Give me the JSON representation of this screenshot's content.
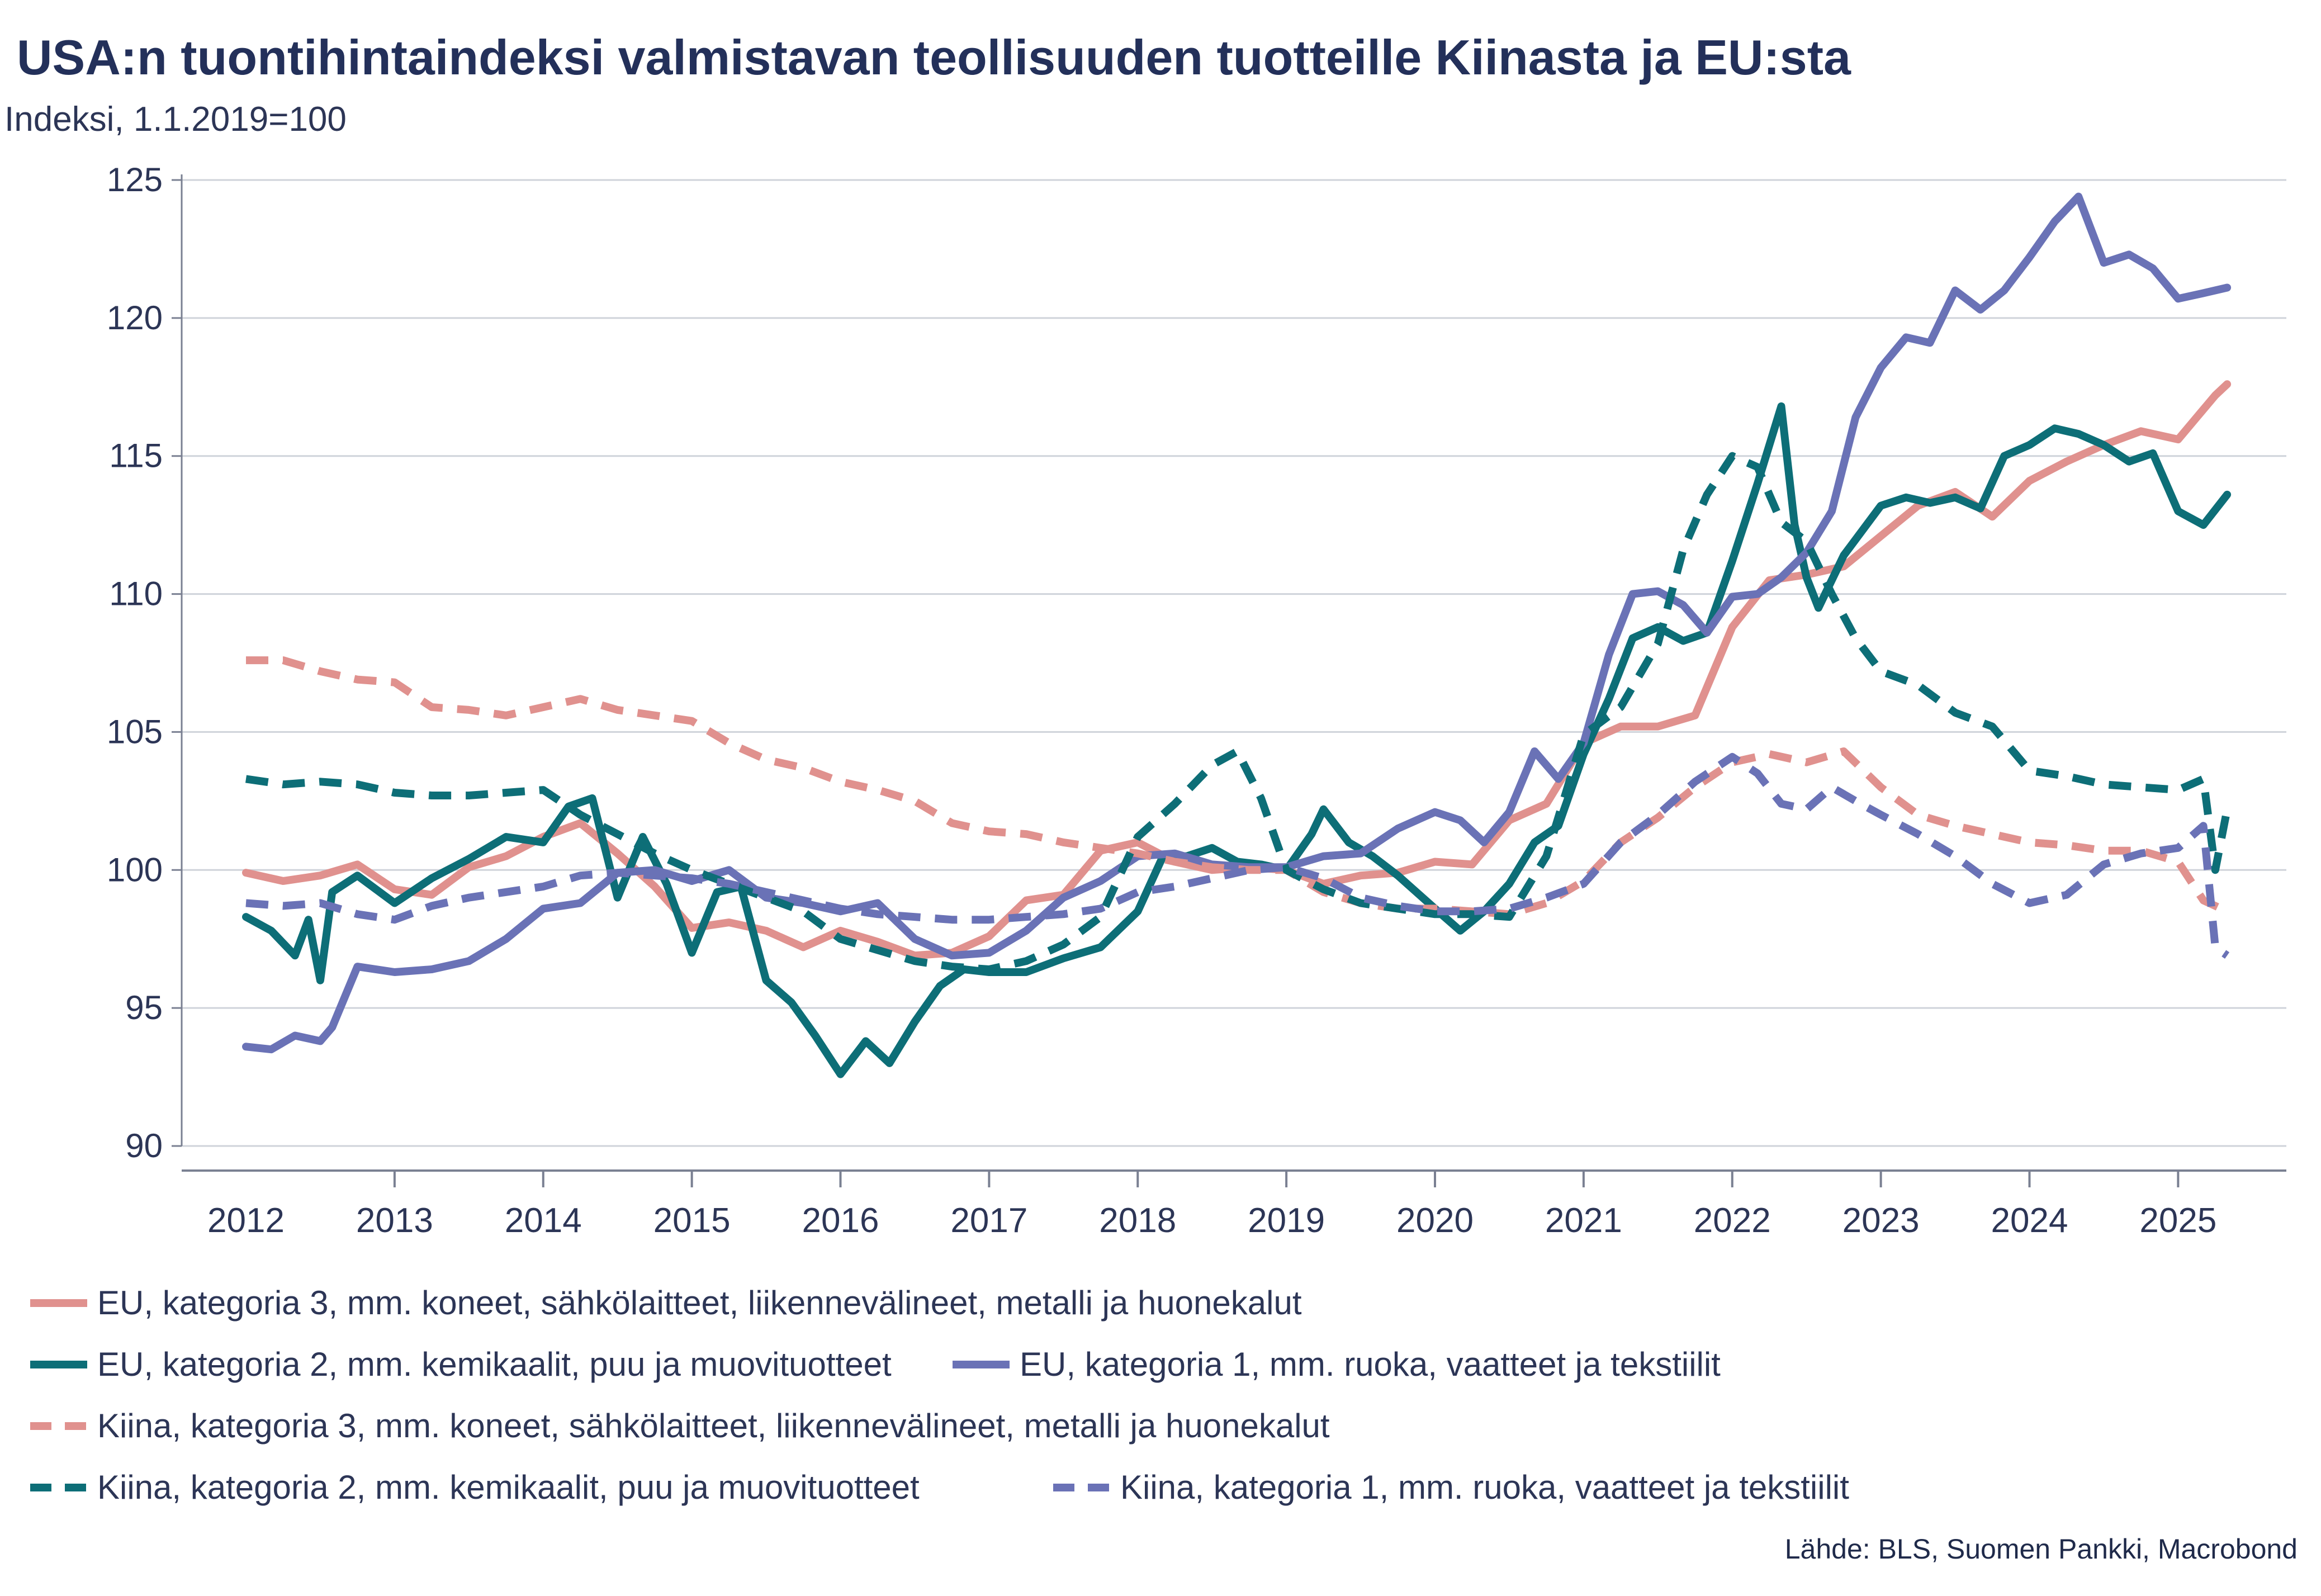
{
  "chart_data": {
    "type": "line",
    "title": "USA:n tuontihintaindeksi valmistavan teollisuuden tuotteille Kiinasta ja EU:sta",
    "ylabel": "Indeksi, 1.1.2019=100",
    "xlabel": "",
    "ylim": [
      90,
      125
    ],
    "yticks": [
      90,
      95,
      100,
      105,
      110,
      115,
      120,
      125
    ],
    "xlim": [
      2012.0,
      2025.3333
    ],
    "xticks": [
      "2012",
      "2013",
      "2014",
      "2015",
      "2016",
      "2017",
      "2018",
      "2019",
      "2020",
      "2021",
      "2022",
      "2023",
      "2024",
      "2025"
    ],
    "grid": "horizontal",
    "source": "Lähde: BLS, Suomen Pankki, Macrobond",
    "series": [
      {
        "name": "EU, kategoria 3, mm. koneet, sähkölaitteet, liikennevälineet, metalli ja huonekalut",
        "color": "#e0918e",
        "dash": false,
        "x": [
          2012.0,
          2012.25,
          2012.5,
          2012.75,
          2013.0,
          2013.25,
          2013.5,
          2013.75,
          2014.0,
          2014.25,
          2014.5,
          2014.75,
          2015.0,
          2015.25,
          2015.5,
          2015.75,
          2016.0,
          2016.25,
          2016.5,
          2016.75,
          2017.0,
          2017.25,
          2017.5,
          2017.75,
          2018.0,
          2018.25,
          2018.5,
          2018.75,
          2019.0,
          2019.25,
          2019.5,
          2019.75,
          2020.0,
          2020.25,
          2020.5,
          2020.75,
          2021.0,
          2021.25,
          2021.5,
          2021.75,
          2022.0,
          2022.25,
          2022.5,
          2022.75,
          2023.0,
          2023.25,
          2023.5,
          2023.75,
          2024.0,
          2024.25,
          2024.5,
          2024.75,
          2025.0,
          2025.25,
          2025.33
        ],
        "y": [
          99.9,
          99.6,
          99.8,
          100.2,
          99.3,
          99.1,
          100.1,
          100.5,
          101.2,
          101.7,
          100.6,
          99.4,
          97.9,
          98.1,
          97.8,
          97.2,
          97.8,
          97.4,
          96.9,
          97.0,
          97.6,
          98.9,
          99.1,
          100.7,
          101.0,
          100.3,
          100.0,
          100.1,
          100.0,
          99.5,
          99.8,
          99.9,
          100.3,
          100.2,
          101.8,
          102.4,
          104.6,
          105.2,
          105.2,
          105.6,
          108.8,
          110.5,
          110.7,
          111.0,
          112.1,
          113.2,
          113.7,
          112.8,
          114.1,
          114.8,
          115.4,
          115.9,
          115.6,
          117.2,
          117.6
        ]
      },
      {
        "name": "EU, kategoria 2, mm. kemikaalit, puu ja muovituotteet",
        "color": "#0d6e77",
        "dash": false,
        "x": [
          2012.0,
          2012.17,
          2012.33,
          2012.42,
          2012.5,
          2012.58,
          2012.75,
          2013.0,
          2013.25,
          2013.5,
          2013.75,
          2014.0,
          2014.17,
          2014.33,
          2014.5,
          2014.67,
          2014.83,
          2015.0,
          2015.17,
          2015.33,
          2015.5,
          2015.67,
          2015.83,
          2016.0,
          2016.17,
          2016.33,
          2016.5,
          2016.67,
          2016.83,
          2017.0,
          2017.25,
          2017.5,
          2017.75,
          2018.0,
          2018.17,
          2018.33,
          2018.5,
          2018.67,
          2018.83,
          2019.0,
          2019.17,
          2019.25,
          2019.42,
          2019.58,
          2019.75,
          2020.0,
          2020.17,
          2020.33,
          2020.5,
          2020.67,
          2020.83,
          2021.0,
          2021.17,
          2021.33,
          2021.5,
          2021.67,
          2021.83,
          2022.0,
          2022.17,
          2022.33,
          2022.42,
          2022.5,
          2022.58,
          2022.75,
          2023.0,
          2023.17,
          2023.33,
          2023.5,
          2023.67,
          2023.83,
          2024.0,
          2024.17,
          2024.33,
          2024.5,
          2024.67,
          2024.83,
          2025.0,
          2025.17,
          2025.33
        ],
        "y": [
          98.3,
          97.8,
          96.9,
          98.2,
          96.0,
          99.2,
          99.8,
          98.8,
          99.7,
          100.4,
          101.2,
          101.0,
          102.3,
          102.6,
          99.0,
          101.2,
          99.5,
          97.0,
          99.2,
          99.4,
          96.0,
          95.2,
          94.0,
          92.6,
          93.8,
          93.0,
          94.5,
          95.8,
          96.4,
          96.3,
          96.3,
          96.8,
          97.2,
          98.5,
          100.5,
          100.5,
          100.8,
          100.3,
          100.2,
          100.0,
          101.3,
          102.2,
          101.0,
          100.5,
          99.8,
          98.6,
          97.8,
          98.5,
          99.5,
          101.0,
          101.6,
          104.2,
          106.2,
          108.4,
          108.8,
          108.3,
          108.6,
          111.2,
          114.0,
          116.8,
          112.5,
          110.6,
          109.5,
          111.4,
          113.2,
          113.5,
          113.3,
          113.5,
          113.1,
          115.0,
          115.4,
          116.0,
          115.8,
          115.4,
          114.8,
          115.1,
          113.0,
          112.5,
          113.6
        ]
      },
      {
        "name": "EU, kategoria 1, mm. ruoka, vaatteet ja tekstiilit",
        "color": "#6a72b6",
        "dash": false,
        "x": [
          2012.0,
          2012.17,
          2012.33,
          2012.5,
          2012.58,
          2012.75,
          2013.0,
          2013.25,
          2013.5,
          2013.75,
          2014.0,
          2014.25,
          2014.5,
          2014.75,
          2015.0,
          2015.25,
          2015.5,
          2015.75,
          2016.0,
          2016.25,
          2016.5,
          2016.75,
          2017.0,
          2017.25,
          2017.5,
          2017.75,
          2018.0,
          2018.25,
          2018.5,
          2018.75,
          2019.0,
          2019.25,
          2019.5,
          2019.75,
          2020.0,
          2020.17,
          2020.33,
          2020.5,
          2020.67,
          2020.83,
          2021.0,
          2021.17,
          2021.33,
          2021.5,
          2021.67,
          2021.83,
          2022.0,
          2022.17,
          2022.33,
          2022.5,
          2022.67,
          2022.83,
          2023.0,
          2023.17,
          2023.33,
          2023.5,
          2023.67,
          2023.83,
          2024.0,
          2024.17,
          2024.33,
          2024.5,
          2024.67,
          2024.83,
          2025.0,
          2025.17,
          2025.33
        ],
        "y": [
          93.6,
          93.5,
          94.0,
          93.8,
          94.3,
          96.5,
          96.3,
          96.4,
          96.7,
          97.5,
          98.6,
          98.8,
          99.9,
          100.0,
          99.6,
          100.0,
          99.0,
          98.8,
          98.5,
          98.8,
          97.5,
          96.9,
          97.0,
          97.8,
          99.0,
          99.6,
          100.5,
          100.6,
          100.2,
          100.1,
          100.1,
          100.5,
          100.6,
          101.5,
          102.1,
          101.8,
          101.0,
          102.1,
          104.3,
          103.3,
          104.6,
          107.8,
          110.0,
          110.1,
          109.6,
          108.6,
          109.9,
          110.0,
          110.6,
          111.5,
          113.0,
          116.4,
          118.2,
          119.3,
          119.1,
          121.0,
          120.3,
          121.0,
          122.2,
          123.5,
          124.4,
          122.0,
          122.3,
          121.8,
          120.7,
          120.9,
          121.1
        ]
      },
      {
        "name": "Kiina, kategoria 3, mm. koneet, sähkölaitteet, liikennevälineet, metalli ja huonekalut",
        "color": "#e0918e",
        "dash": true,
        "x": [
          2012.0,
          2012.25,
          2012.5,
          2012.75,
          2013.0,
          2013.25,
          2013.5,
          2013.75,
          2014.0,
          2014.25,
          2014.5,
          2014.75,
          2015.0,
          2015.25,
          2015.5,
          2015.75,
          2016.0,
          2016.25,
          2016.5,
          2016.75,
          2017.0,
          2017.25,
          2017.5,
          2017.75,
          2018.0,
          2018.25,
          2018.5,
          2018.75,
          2019.0,
          2019.25,
          2019.5,
          2019.75,
          2020.0,
          2020.25,
          2020.5,
          2020.75,
          2021.0,
          2021.25,
          2021.5,
          2021.75,
          2022.0,
          2022.25,
          2022.5,
          2022.75,
          2023.0,
          2023.25,
          2023.5,
          2023.75,
          2024.0,
          2024.25,
          2024.5,
          2024.75,
          2025.0,
          2025.17,
          2025.33
        ],
        "y": [
          107.6,
          107.6,
          107.2,
          106.9,
          106.8,
          105.9,
          105.8,
          105.6,
          105.9,
          106.2,
          105.8,
          105.6,
          105.4,
          104.6,
          104.0,
          103.7,
          103.2,
          102.9,
          102.5,
          101.7,
          101.4,
          101.3,
          101.0,
          100.8,
          100.6,
          100.3,
          100.1,
          100.0,
          100.0,
          99.2,
          98.8,
          98.6,
          98.6,
          98.5,
          98.4,
          98.8,
          99.6,
          101.0,
          101.9,
          103.0,
          103.9,
          104.2,
          103.9,
          104.3,
          103.0,
          102.0,
          101.6,
          101.3,
          101.0,
          100.9,
          100.7,
          100.7,
          100.3,
          98.9,
          98.5
        ]
      },
      {
        "name": "Kiina, kategoria 2, mm. kemikaalit, puu ja muovituotteet",
        "color": "#0d6e77",
        "dash": true,
        "x": [
          2012.0,
          2012.25,
          2012.5,
          2012.75,
          2013.0,
          2013.25,
          2013.5,
          2013.75,
          2014.0,
          2014.25,
          2014.5,
          2014.75,
          2015.0,
          2015.25,
          2015.5,
          2015.75,
          2016.0,
          2016.25,
          2016.5,
          2016.75,
          2017.0,
          2017.25,
          2017.5,
          2017.75,
          2018.0,
          2018.25,
          2018.5,
          2018.67,
          2018.83,
          2019.0,
          2019.25,
          2019.5,
          2019.75,
          2020.0,
          2020.25,
          2020.5,
          2020.75,
          2021.0,
          2021.25,
          2021.5,
          2021.67,
          2021.83,
          2022.0,
          2022.17,
          2022.33,
          2022.5,
          2022.67,
          2022.83,
          2023.0,
          2023.25,
          2023.5,
          2023.75,
          2024.0,
          2024.25,
          2024.5,
          2024.75,
          2025.0,
          2025.17,
          2025.25,
          2025.33
        ],
        "y": [
          103.3,
          103.1,
          103.2,
          103.1,
          102.8,
          102.7,
          102.7,
          102.8,
          102.9,
          102.0,
          101.3,
          100.6,
          100.0,
          99.5,
          99.0,
          98.5,
          97.5,
          97.1,
          96.7,
          96.5,
          96.4,
          96.7,
          97.3,
          98.3,
          101.2,
          102.4,
          103.8,
          104.3,
          102.6,
          100.0,
          99.3,
          98.8,
          98.6,
          98.4,
          98.4,
          98.3,
          100.5,
          104.9,
          105.9,
          108.2,
          111.6,
          113.6,
          115.0,
          114.6,
          112.6,
          111.9,
          110.0,
          108.4,
          107.2,
          106.7,
          105.7,
          105.2,
          103.6,
          103.4,
          103.1,
          103.0,
          102.9,
          103.3,
          100.0,
          102.2
        ]
      },
      {
        "name": "Kiina, kategoria 1, mm. ruoka, vaatteet ja tekstiilit",
        "color": "#6a72b6",
        "dash": true,
        "x": [
          2012.0,
          2012.25,
          2012.5,
          2012.75,
          2013.0,
          2013.25,
          2013.5,
          2013.75,
          2014.0,
          2014.25,
          2014.5,
          2014.75,
          2015.0,
          2015.25,
          2015.5,
          2015.75,
          2016.0,
          2016.25,
          2016.5,
          2016.75,
          2017.0,
          2017.25,
          2017.5,
          2017.75,
          2018.0,
          2018.25,
          2018.5,
          2018.75,
          2019.0,
          2019.25,
          2019.5,
          2019.75,
          2020.0,
          2020.25,
          2020.5,
          2020.75,
          2021.0,
          2021.25,
          2021.5,
          2021.75,
          2022.0,
          2022.17,
          2022.33,
          2022.5,
          2022.67,
          2022.83,
          2023.0,
          2023.25,
          2023.5,
          2023.75,
          2024.0,
          2024.25,
          2024.5,
          2024.75,
          2025.0,
          2025.17,
          2025.25,
          2025.33
        ],
        "y": [
          98.8,
          98.7,
          98.8,
          98.4,
          98.2,
          98.7,
          99.0,
          99.2,
          99.4,
          99.8,
          99.9,
          99.8,
          99.7,
          99.5,
          99.2,
          98.9,
          98.6,
          98.4,
          98.3,
          98.2,
          98.2,
          98.3,
          98.4,
          98.6,
          99.2,
          99.4,
          99.7,
          100.0,
          100.1,
          99.7,
          99.0,
          98.7,
          98.5,
          98.5,
          98.6,
          99.0,
          99.5,
          101.0,
          102.0,
          103.2,
          104.1,
          103.5,
          102.4,
          102.2,
          103.0,
          102.5,
          102.0,
          101.3,
          100.5,
          99.5,
          98.8,
          99.1,
          100.2,
          100.6,
          100.8,
          101.6,
          97.2,
          96.9
        ]
      }
    ]
  },
  "legend_rows": [
    [
      "EU, kategoria 3, mm. koneet, sähkölaitteet, liikennevälineet, metalli ja huonekalut"
    ],
    [
      "EU, kategoria 2, mm. kemikaalit, puu ja muovituotteet",
      "EU, kategoria 1, mm. ruoka, vaatteet ja tekstiilit"
    ],
    [
      "Kiina, kategoria 3, mm. koneet, sähkölaitteet, liikennevälineet, metalli ja huonekalut"
    ],
    [
      "Kiina, kategoria 2, mm. kemikaalit, puu ja muovituotteet",
      "Kiina, kategoria 1, mm. ruoka, vaatteet ja tekstiilit"
    ]
  ]
}
